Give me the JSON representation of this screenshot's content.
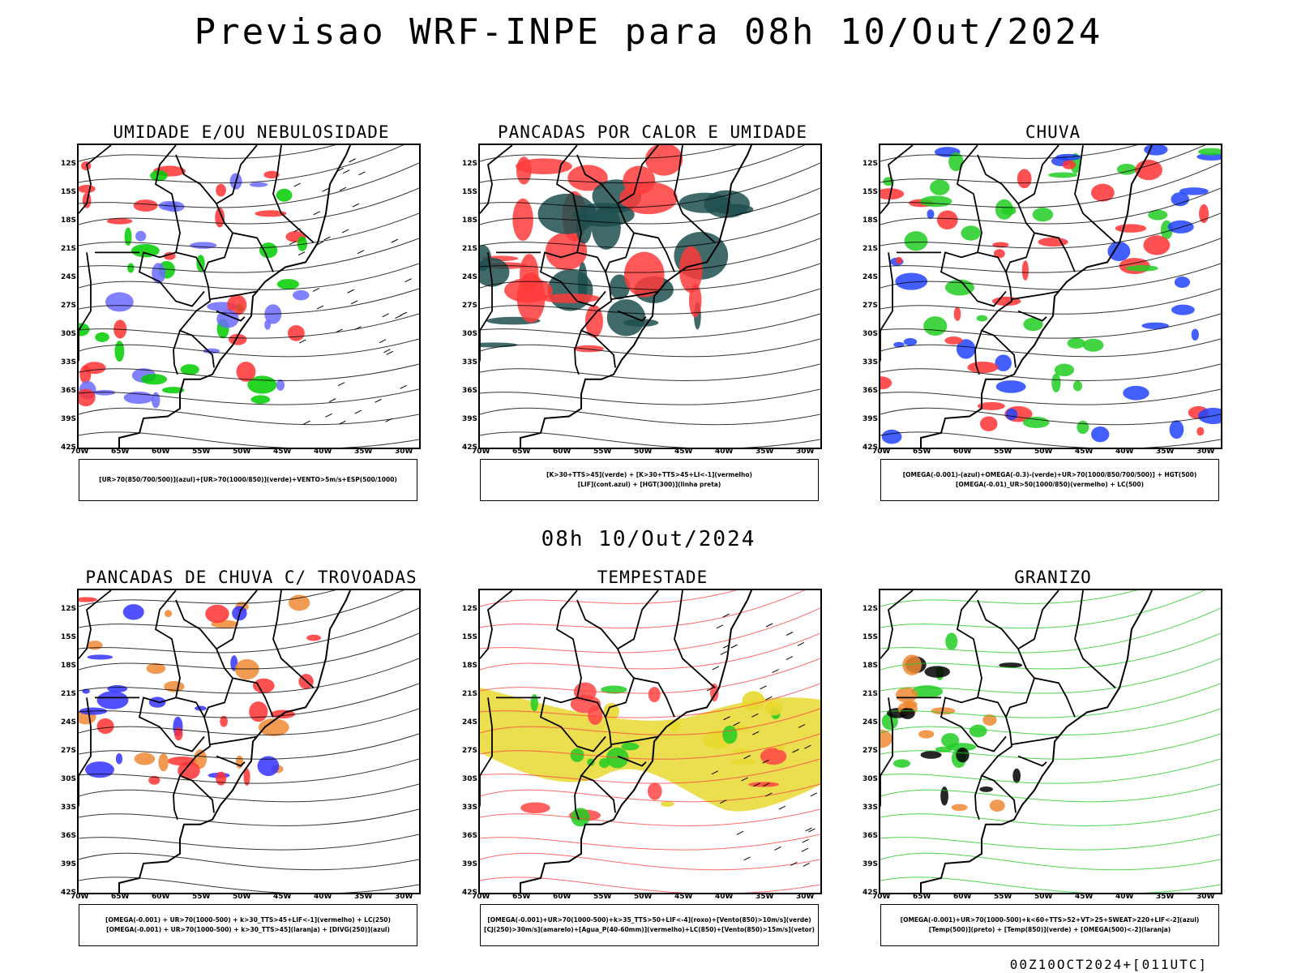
{
  "title": "Previsao WRF-INPE  para 08h 10/Out/2024",
  "subtitle": "08h 10/Out/2024",
  "footer": "00Z10OCT2024+[011UTC]",
  "lat_ticks": [
    "12S",
    "15S",
    "18S",
    "21S",
    "24S",
    "27S",
    "30S",
    "33S",
    "36S",
    "39S",
    "42S"
  ],
  "lon_ticks": [
    "70W",
    "65W",
    "60W",
    "55W",
    "50W",
    "45W",
    "40W",
    "35W",
    "30W"
  ],
  "panels": [
    {
      "title": "UMIDADE E/OU NEBULOSIDADE",
      "legend": [
        "[UR>70(850/700/500)](azul)+[UR>70(1000/850)](verde)+VENTO>5m/s+ESP(500/1000)"
      ],
      "colors": [
        "#6b6bff",
        "#00cc00",
        "#ff3333"
      ]
    },
    {
      "title": "PANCADAS POR CALOR E UMIDADE",
      "legend": [
        "[K>30+TTS>45](verde) + [K>30+TTS>45+LI<-1](vermelho)",
        "[LIF](cont.azul) + [HGT(300)](linha preta)"
      ],
      "colors": [
        "#1f4f4f",
        "#ff3b3b",
        "#3333ff"
      ]
    },
    {
      "title": "CHUVA",
      "legend": [
        "[OMEGA(-0.001)-(azul)+OMEGA(-0.3)-(verde)+UR>70(1000/850/700/500)] + HGT(500)",
        "[OMEGA(-0.01)_UR>50(1000/850)(vermelho) + LC(500)"
      ],
      "colors": [
        "#2244ff",
        "#22cc22",
        "#ff3333"
      ]
    },
    {
      "title": "PANCADAS DE CHUVA C/ TROVOADAS",
      "legend": [
        "[OMEGA(-0.001) + UR>70(1000-500) + k>30_TTS>45+LIF<-1](vermelho) + LC(250)",
        "[OMEGA(-0.001) + UR>70(1000-500) + k>30_TTS>45](laranja) + [DIVG(250)](azul)"
      ],
      "colors": [
        "#ff3333",
        "#ee8833",
        "#3333ff"
      ]
    },
    {
      "title": "TEMPESTADE",
      "legend": [
        "[OMEGA(-0.001)+UR>70(1000-500)+k>35_TTS>50+LIF<-4](roxo)+[Vento(850)>10m/s](verde)",
        "[CJ(250)>30m/s](amarelo)+[Agua_P(40-60mm)](vermelho)+LC(850)+[Vento(850)>15m/s](vetor)"
      ],
      "colors": [
        "#e8d830",
        "#ff4444",
        "#22cc22"
      ]
    },
    {
      "title": "GRANIZO",
      "legend": [
        "[OMEGA(-0.001)+UR>70(1000-500)+k<60+TTS>52+VT>25+SWEAT>220+LIF<-2](azul)",
        "[Temp(500)](preto) + [Temp(850)](verde) + [OMEGA(500)<-2](laranja)"
      ],
      "colors": [
        "#22cc22",
        "#ee8833",
        "#000000"
      ]
    }
  ]
}
